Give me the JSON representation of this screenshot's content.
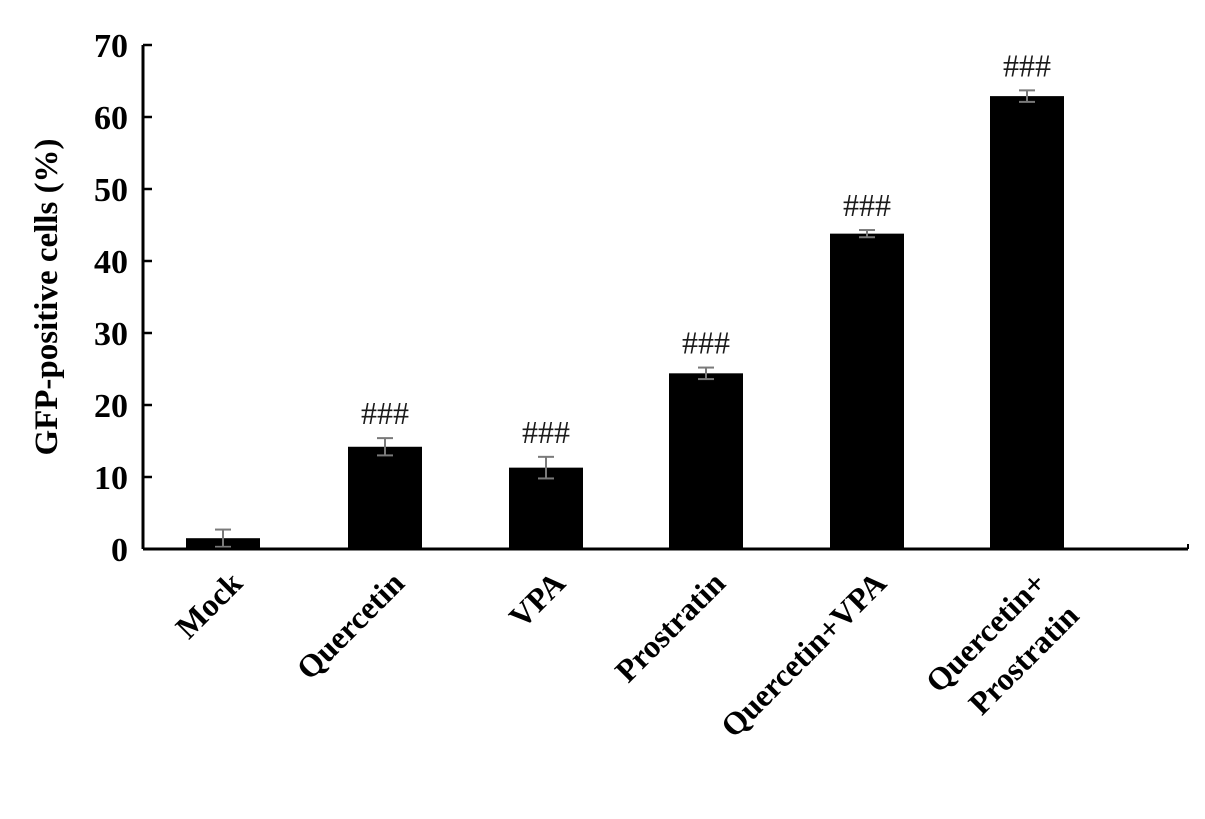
{
  "chart_data": {
    "type": "bar",
    "title": "",
    "xlabel": "",
    "ylabel": "GFP-positive cells  (%)",
    "ylim": [
      0,
      70
    ],
    "yticks": [
      0,
      10,
      20,
      30,
      40,
      50,
      60,
      70
    ],
    "grid": false,
    "bar_color": "#000000",
    "categories": [
      [
        "Mock"
      ],
      [
        "Quercetin"
      ],
      [
        "VPA"
      ],
      [
        "Prostratin"
      ],
      [
        "Quercetin+VPA"
      ],
      [
        "Quercetin+",
        "Prostratin"
      ]
    ],
    "values": [
      1.5,
      14.2,
      11.3,
      24.4,
      43.8,
      62.9
    ],
    "errors": [
      1.2,
      1.2,
      1.5,
      0.8,
      0.5,
      0.8
    ],
    "annotations": [
      "",
      "###",
      "###",
      "###",
      "###",
      "###"
    ]
  }
}
